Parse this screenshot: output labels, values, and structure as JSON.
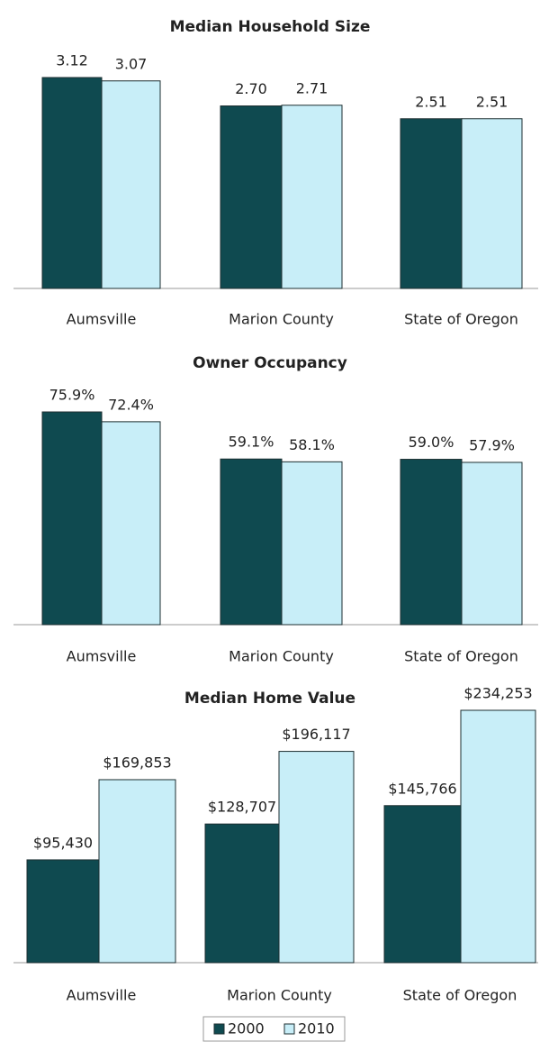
{
  "chart_data": [
    {
      "type": "bar",
      "title": "Median Household Size",
      "categories": [
        "Aumsville",
        "Marion County",
        "State of Oregon"
      ],
      "series": [
        {
          "values": [
            3.12,
            2.7,
            2.51
          ],
          "value_labels": [
            "3.12",
            "2.70",
            "2.51"
          ]
        },
        {
          "values": [
            3.07,
            2.71,
            2.51
          ],
          "value_labels": [
            "3.07",
            "2.71",
            "2.51"
          ]
        }
      ]
    },
    {
      "type": "bar",
      "title": "Owner Occupancy",
      "categories": [
        "Aumsville",
        "Marion County",
        "State of Oregon"
      ],
      "series": [
        {
          "values": [
            75.9,
            59.1,
            59.0
          ],
          "value_labels": [
            "75.9%",
            "59.1%",
            "59.0%"
          ]
        },
        {
          "values": [
            72.4,
            58.1,
            57.9
          ],
          "value_labels": [
            "72.4%",
            "58.1%",
            "57.9%"
          ]
        }
      ]
    },
    {
      "type": "bar",
      "title": "Median Home Value",
      "categories": [
        "Aumsville",
        "Marion County",
        "State of Oregon"
      ],
      "series": [
        {
          "values": [
            95430,
            128707,
            145766
          ],
          "value_labels": [
            "$95,430",
            "$128,707",
            "$145,766"
          ]
        },
        {
          "values": [
            169853,
            196117,
            234253
          ],
          "value_labels": [
            "$169,853",
            "$196,117",
            "$234,253"
          ]
        }
      ]
    }
  ],
  "legend": {
    "entries": [
      {
        "name": "2000",
        "color": "#0f4a50"
      },
      {
        "name": "2010",
        "color": "#c8eef8"
      }
    ]
  }
}
